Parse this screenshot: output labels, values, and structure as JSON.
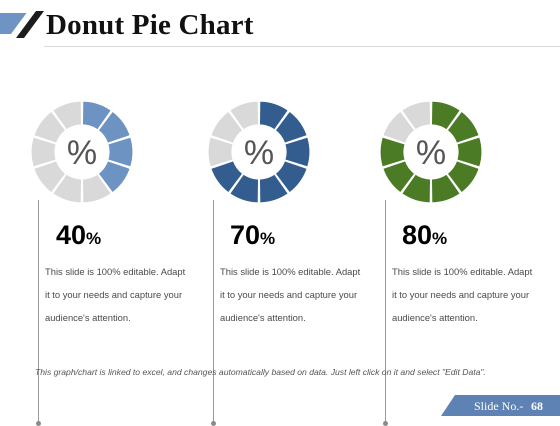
{
  "header": {
    "title": "Donut Pie Chart"
  },
  "donuts": [
    {
      "center_symbol": "%",
      "value_number": "40",
      "value_symbol": "%",
      "filled_fraction": 0.4,
      "color": "#6c93c2",
      "track_color": "#d9d9d9",
      "description": [
        "This slide is 100% editable. Adapt",
        "it to your needs and capture your",
        "audience's attention."
      ]
    },
    {
      "center_symbol": "%",
      "value_number": "70",
      "value_symbol": "%",
      "filled_fraction": 0.7,
      "color": "#335d8f",
      "track_color": "#d9d9d9",
      "description": [
        "This slide is 100% editable. Adapt",
        "it to your needs and capture your",
        "audience's attention."
      ]
    },
    {
      "center_symbol": "%",
      "value_number": "80",
      "value_symbol": "%",
      "filled_fraction": 0.8,
      "color": "#4b7c25",
      "track_color": "#d9d9d9",
      "description": [
        "This slide is 100% editable. Adapt",
        "it to your needs and capture your",
        "audience's attention."
      ]
    }
  ],
  "segments_per_donut": 10,
  "footnote": "This graph/chart is linked to excel, and changes automatically based on data. Just left click on it and select \"Edit Data\".",
  "footer": {
    "slide_label": "Slide No.-",
    "slide_number": "68"
  },
  "colors": {
    "accent_blue": "#5e82b3",
    "title_text": "#111111"
  }
}
